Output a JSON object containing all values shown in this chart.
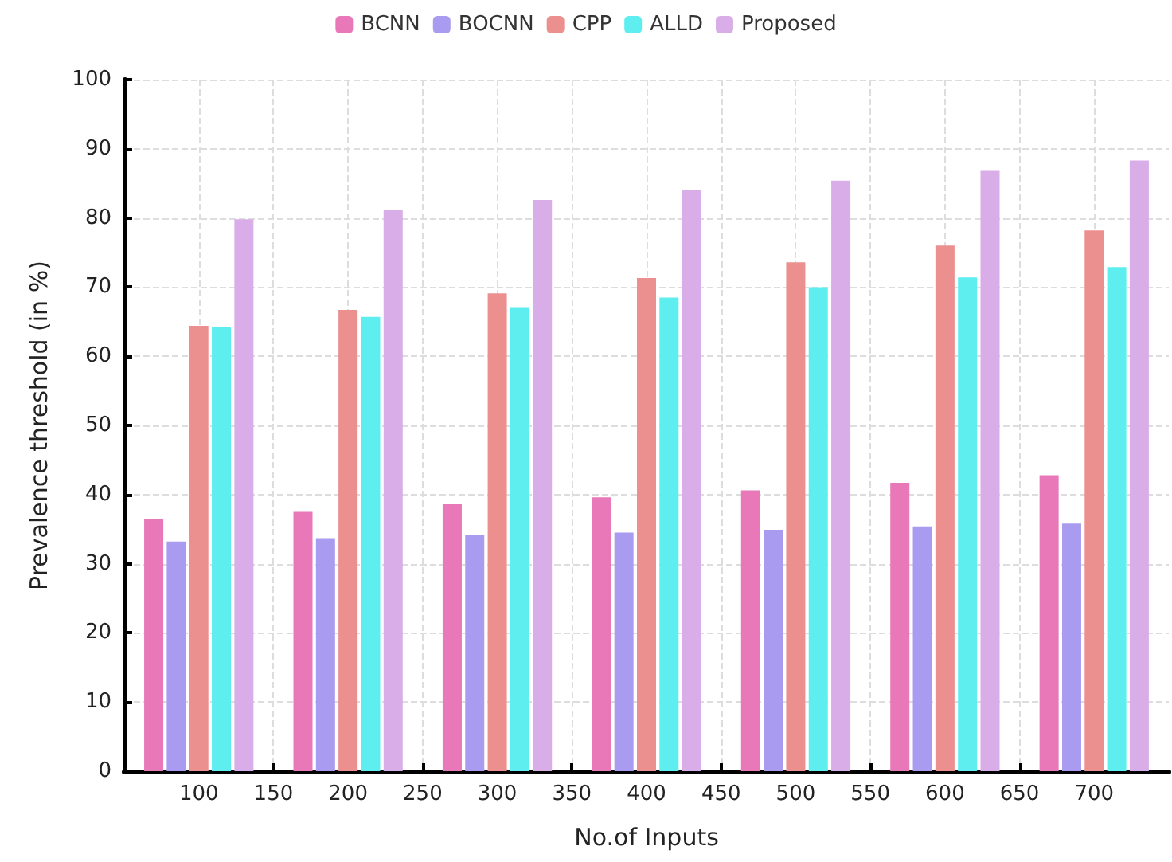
{
  "chart_data": {
    "type": "bar",
    "xlabel": "No.of Inputs",
    "ylabel": "Prevalence threshold (in %)",
    "x": [
      100,
      200,
      300,
      400,
      500,
      600,
      700
    ],
    "series": [
      {
        "name": "BCNN",
        "color": "#e878b8",
        "values": [
          36.5,
          37.5,
          38.6,
          39.6,
          40.6,
          41.7,
          42.8
        ]
      },
      {
        "name": "BOCNN",
        "color": "#a99cf0",
        "values": [
          33.2,
          33.7,
          34.1,
          34.5,
          34.9,
          35.4,
          35.8
        ]
      },
      {
        "name": "CPP",
        "color": "#ec8f8f",
        "values": [
          64.4,
          66.7,
          69.1,
          71.3,
          73.6,
          76.0,
          78.2
        ]
      },
      {
        "name": "ALLD",
        "color": "#5eeef0",
        "values": [
          64.2,
          65.7,
          67.1,
          68.5,
          70.0,
          71.4,
          72.9
        ]
      },
      {
        "name": "Proposed",
        "color": "#d9aee8",
        "values": [
          79.8,
          81.1,
          82.6,
          84.0,
          85.4,
          86.8,
          88.3
        ]
      }
    ],
    "xlim": [
      50,
      750
    ],
    "xticks": [
      100,
      150,
      200,
      250,
      300,
      350,
      400,
      450,
      500,
      550,
      600,
      650,
      700
    ],
    "ylim": [
      0,
      100
    ],
    "yticks": [
      0,
      10,
      20,
      30,
      40,
      50,
      60,
      70,
      80,
      90,
      100
    ],
    "grid": true,
    "legend": "top"
  }
}
